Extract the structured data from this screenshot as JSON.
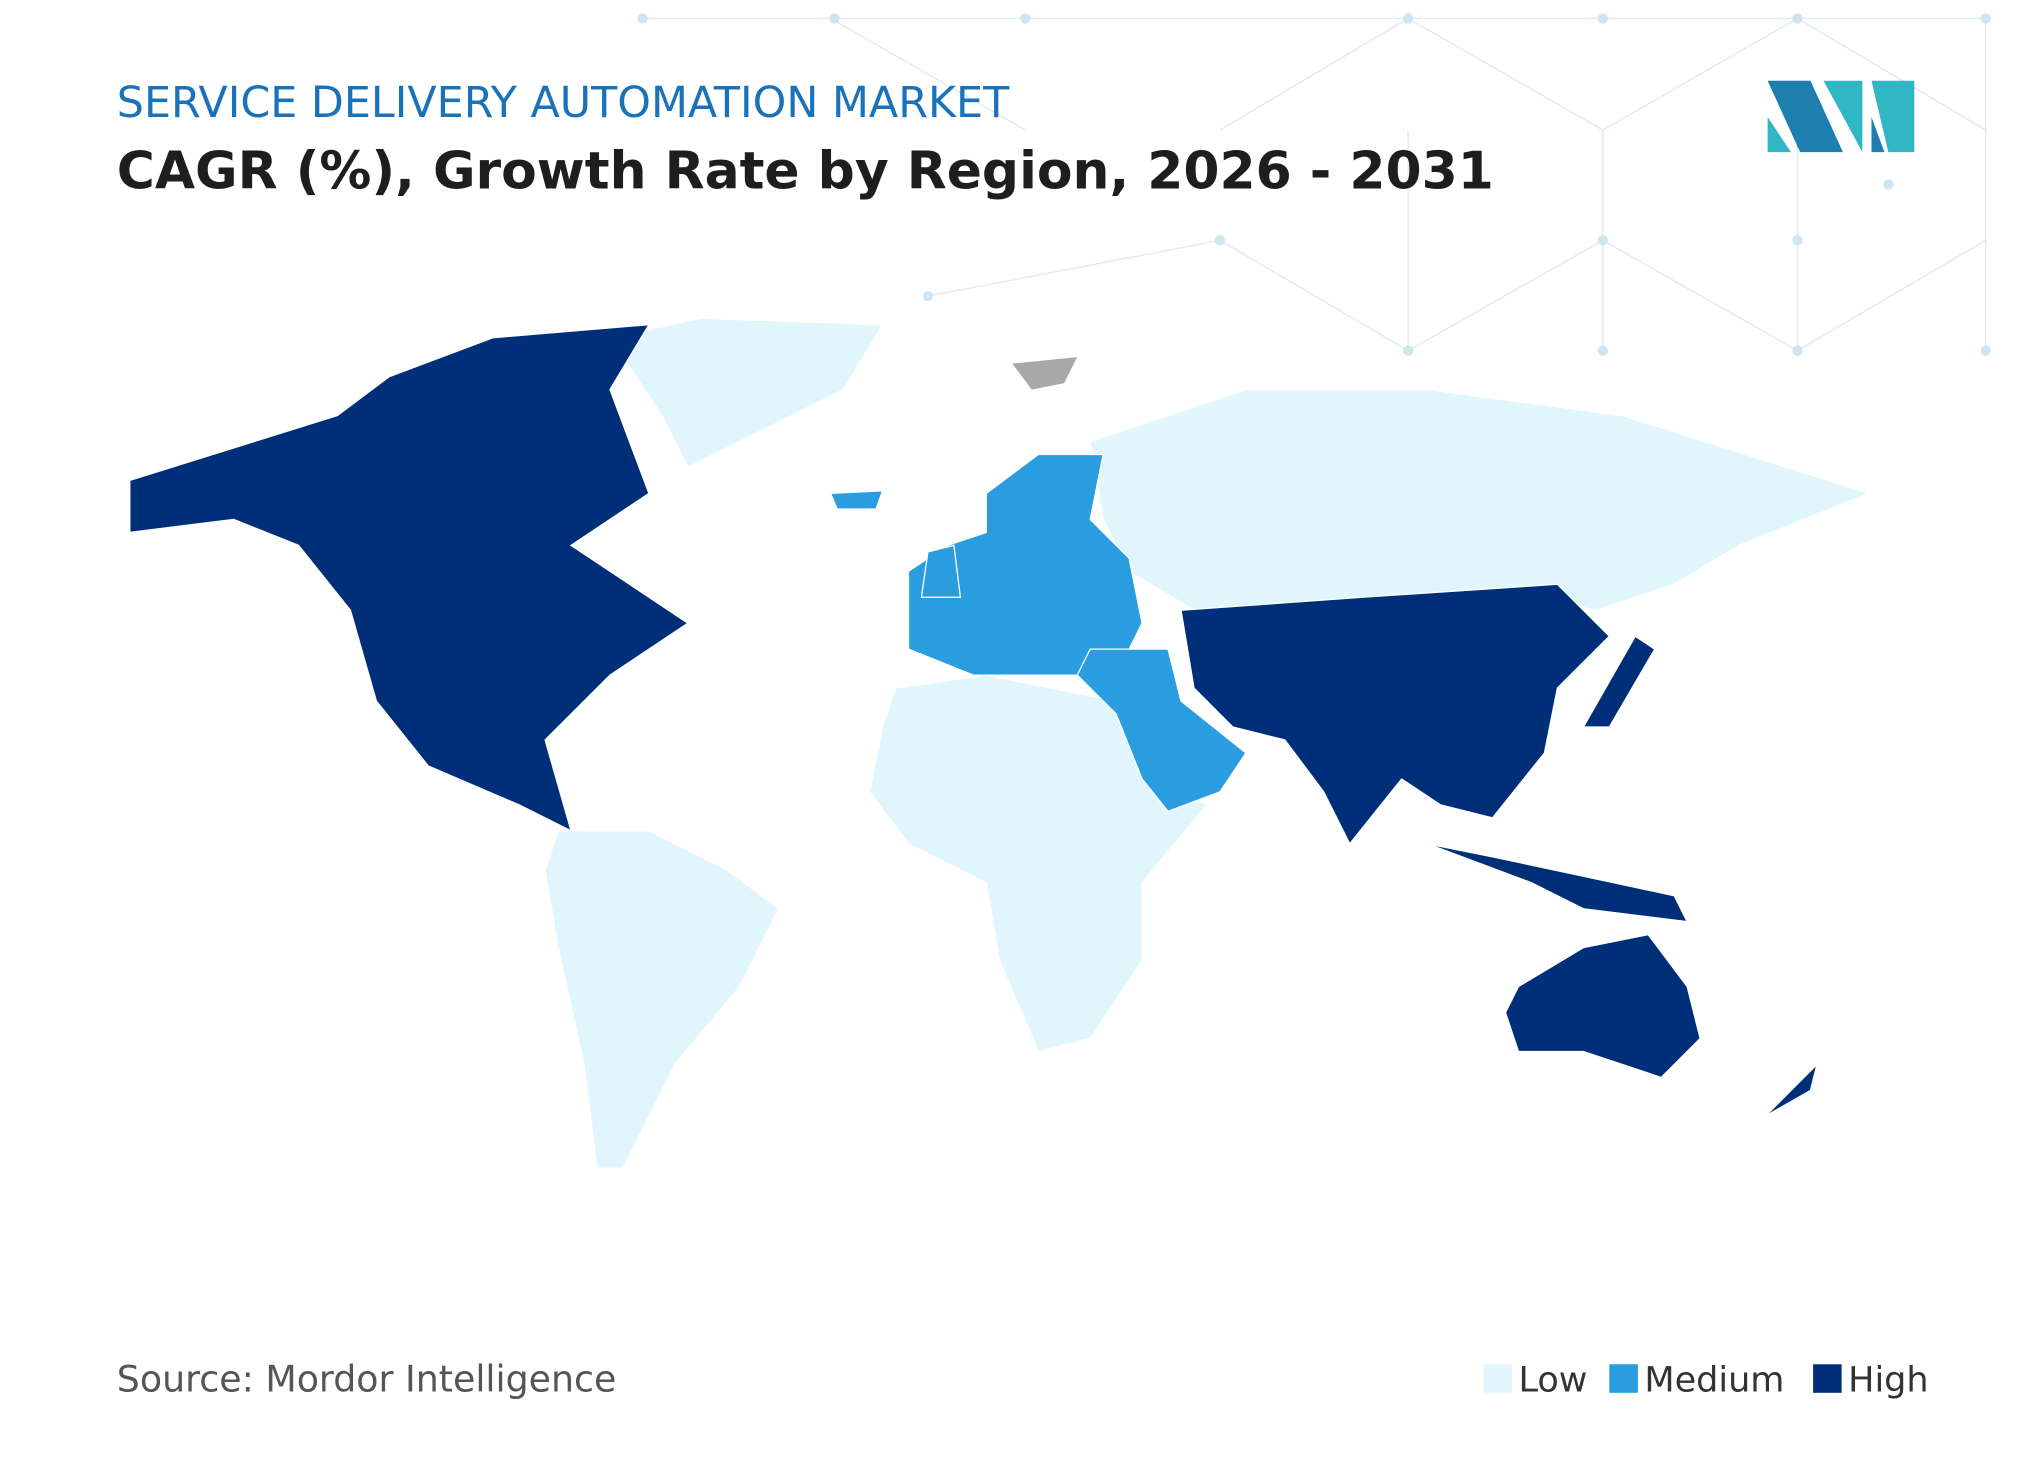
{
  "header": {
    "title": "SERVICE DELIVERY AUTOMATION MARKET",
    "subtitle": "CAGR (%), Growth Rate by Region, 2026 - 2031"
  },
  "legend": [
    {
      "label": "Low",
      "color": "#e0f6fc"
    },
    {
      "label": "Medium",
      "color": "#2a9de0"
    },
    {
      "label": "High",
      "color": "#002f7a"
    }
  ],
  "source": "Source: Mordor Intelligence"
}
